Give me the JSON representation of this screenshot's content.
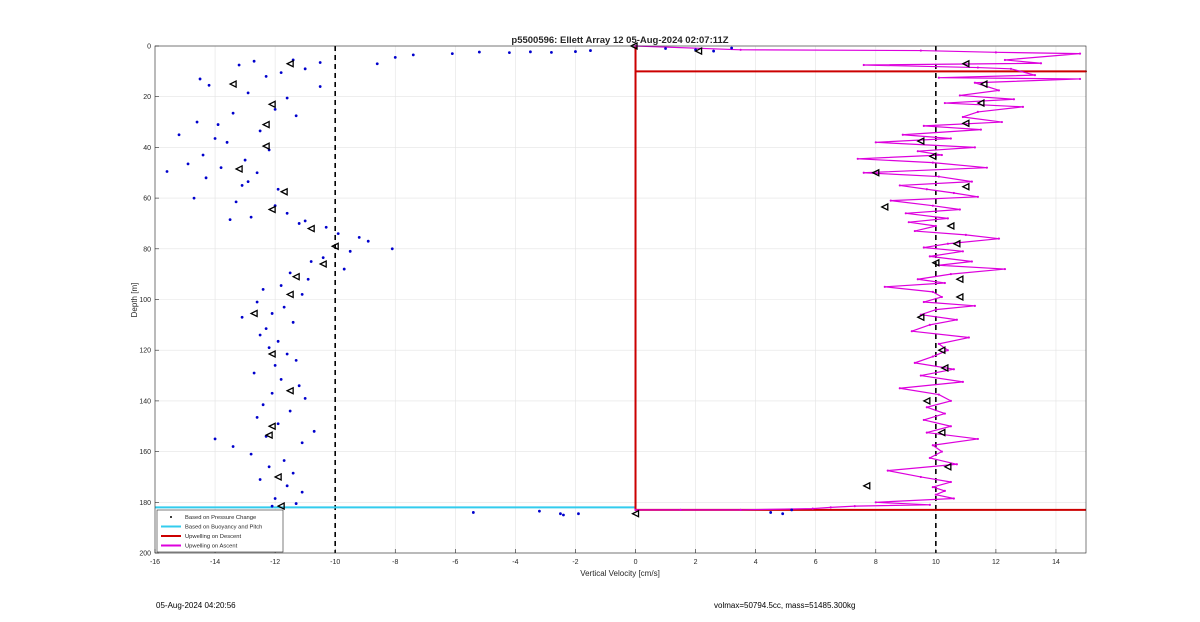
{
  "chart_data": {
    "type": "scatter",
    "title": "p5500596: Ellett Array 12 05-Aug-2024 02:07:11Z",
    "xlabel": "Vertical Velocity [cm/s]",
    "ylabel": "Depth [m]",
    "xlim": [
      -16,
      15
    ],
    "ylim": [
      0,
      200
    ],
    "y_reversed": true,
    "grid": true,
    "xticks": [
      -16,
      -14,
      -12,
      -10,
      -8,
      -6,
      -4,
      -2,
      0,
      2,
      4,
      6,
      8,
      10,
      12,
      14
    ],
    "yticks": [
      0,
      20,
      40,
      60,
      80,
      100,
      120,
      140,
      160,
      180,
      200
    ],
    "legend_position": "bottom-left",
    "legend": [
      {
        "label": "Based on Pressure Change",
        "color": "#000000",
        "style": "dot"
      },
      {
        "label": "Based on Buoyancy and Pitch",
        "color": "#33ccee",
        "style": "line"
      },
      {
        "label": "Upwelling on Descent",
        "color": "#cc0000",
        "style": "line"
      },
      {
        "label": "Upwelling on Ascent",
        "color": "#dd00dd",
        "style": "line"
      }
    ],
    "reference_lines_x": [
      -10,
      10
    ],
    "series": [
      {
        "name": "Based on Pressure Change",
        "marker": "dot",
        "color": "#0000cc",
        "x": [
          2.0,
          3.2,
          2.6,
          1.0,
          -1.5,
          -2.0,
          -2.8,
          -3.5,
          -4.2,
          -5.2,
          -6.1,
          -7.4,
          -8.0,
          -8.6,
          -10.5,
          -11.4,
          -12.7,
          -13.2,
          -14.5,
          -14.2,
          -12.3,
          -11.8,
          -12.9,
          -11.0,
          -10.5,
          -11.6,
          -12.0,
          -13.4,
          -11.3,
          -14.6,
          -13.9,
          -12.5,
          -15.2,
          -14.0,
          -13.6,
          -12.2,
          -14.4,
          -13.0,
          -14.9,
          -13.8,
          -12.6,
          -15.6,
          -14.3,
          -12.9,
          -13.1,
          -11.9,
          -14.7,
          -13.3,
          -12.0,
          -11.6,
          -12.8,
          -13.5,
          -11.2,
          -10.3,
          -11.0,
          -9.9,
          -9.2,
          -8.9,
          -8.1,
          -9.5,
          -10.4,
          -10.8,
          -9.7,
          -11.5,
          -10.9,
          -11.8,
          -12.4,
          -11.1,
          -12.6,
          -11.7,
          -12.1,
          -13.1,
          -11.4,
          -12.3,
          -12.5,
          -11.9,
          -12.2,
          -11.6,
          -11.3,
          -12.0,
          -12.7,
          -11.8,
          -11.2,
          -12.1,
          -11.0,
          -12.4,
          -11.5,
          -12.6,
          -11.9,
          -10.7,
          -12.3,
          -11.1,
          -14.0,
          -13.4,
          -12.8,
          -11.7,
          -12.2,
          -11.4,
          -12.5,
          -11.6,
          -11.1,
          -12.0,
          -11.3,
          -12.1,
          -5.4,
          -3.2,
          -2.5,
          -2.4,
          -1.9,
          4.5,
          4.9,
          5.2
        ],
        "y": [
          1.5,
          0.8,
          2.0,
          1.0,
          1.8,
          2.2,
          2.5,
          2.3,
          2.6,
          2.4,
          3.0,
          3.5,
          4.5,
          7.0,
          6.5,
          5.5,
          6.0,
          7.5,
          13.0,
          15.5,
          12.0,
          10.5,
          18.5,
          9.0,
          16.0,
          20.5,
          25.0,
          26.5,
          27.5,
          30.0,
          31.0,
          33.5,
          35.0,
          36.5,
          38.0,
          41.0,
          43.0,
          45.0,
          46.5,
          48.0,
          50.0,
          49.5,
          52.0,
          53.5,
          55.0,
          56.5,
          60.0,
          61.5,
          63.0,
          66.0,
          67.5,
          68.5,
          70.0,
          71.5,
          69.0,
          74.0,
          75.5,
          77.0,
          80.0,
          81.0,
          83.5,
          85.0,
          88.0,
          89.5,
          92.0,
          94.5,
          96.0,
          98.0,
          101.0,
          103.0,
          105.5,
          107.0,
          109.0,
          111.5,
          114.0,
          116.5,
          119.0,
          121.5,
          124.0,
          126.0,
          129.0,
          131.5,
          134.0,
          137.0,
          139.0,
          141.5,
          144.0,
          146.5,
          149.0,
          152.0,
          154.0,
          156.5,
          155.0,
          158.0,
          161.0,
          163.5,
          166.0,
          168.5,
          171.0,
          173.5,
          176.0,
          178.5,
          180.5,
          181.5,
          184.0,
          183.5,
          184.5,
          185.0,
          184.5,
          184.0,
          184.5,
          183.0
        ]
      },
      {
        "name": "Based on Pressure Change",
        "marker": "triangle",
        "color": "#000000",
        "x": [
          -11.5,
          -13.4,
          -12.1,
          -12.3,
          -12.3,
          -13.2,
          -11.7,
          -12.1,
          -10.8,
          -10.0,
          -10.4,
          -11.3,
          -11.5,
          -12.7,
          -12.1,
          -11.5,
          -12.1,
          -12.2,
          -11.9,
          -11.8,
          -0.05,
          2.1
        ],
        "y": [
          7.0,
          15.0,
          23.0,
          31.0,
          39.5,
          48.5,
          57.5,
          64.5,
          72.0,
          79.0,
          86.0,
          91.0,
          98.0,
          105.5,
          121.5,
          136.0,
          150.0,
          153.5,
          170.0,
          181.5,
          0.0,
          2.0
        ]
      },
      {
        "name": "Based on Buoyancy and Pitch",
        "marker": "line",
        "color": "#33ccee",
        "x": [
          0.0,
          0.0,
          0.0,
          -16.0
        ],
        "y": [
          0.0,
          10.0,
          182.0,
          182.0
        ]
      },
      {
        "name": "Upwelling on Descent",
        "marker": "line",
        "color": "#cc0000",
        "x": [
          0.0,
          0.0,
          15.0,
          0.0,
          0.0,
          15.0
        ],
        "y": [
          0.0,
          10.0,
          10.0,
          10.0,
          183.0,
          183.0
        ]
      },
      {
        "name": "Upwelling on Ascent",
        "marker": "line",
        "color": "#dd00dd",
        "x": [
          0.0,
          3.5,
          9.5,
          12.0,
          14.8,
          12.3,
          13.5,
          7.6,
          11.4,
          12.5,
          13.3,
          10.1,
          14.8,
          11.3,
          12.1,
          10.8,
          12.6,
          10.3,
          12.9,
          11.4,
          10.9,
          12.2,
          9.6,
          11.5,
          8.9,
          10.5,
          8.0,
          11.3,
          9.4,
          10.2,
          7.4,
          9.9,
          11.7,
          7.6,
          10.1,
          11.2,
          8.8,
          9.7,
          10.6,
          11.4,
          8.5,
          9.9,
          10.8,
          9.0,
          10.4,
          9.1,
          10.0,
          9.3,
          11.0,
          12.1,
          10.4,
          9.6,
          10.9,
          9.8,
          11.2,
          10.1,
          12.3,
          10.5,
          9.4,
          10.3,
          8.3,
          9.9,
          10.2,
          9.6,
          11.3,
          10.0,
          9.5,
          10.7,
          9.8,
          9.2,
          11.1,
          10.1,
          10.4,
          9.9,
          9.3,
          10.6,
          9.5,
          10.9,
          8.8,
          10.1,
          10.5,
          9.7,
          10.3,
          9.6,
          10.5,
          9.7,
          11.4,
          9.9,
          10.2,
          9.8,
          10.7,
          8.4,
          9.5,
          10.5,
          9.9,
          10.3,
          10.0,
          10.6,
          8.0,
          9.8,
          7.3,
          6.5,
          5.9,
          3.5,
          1.5,
          0.0
        ],
        "y": [
          0.0,
          1.5,
          1.8,
          2.5,
          3.0,
          5.5,
          6.8,
          7.5,
          8.5,
          9.0,
          11.5,
          12.5,
          13.0,
          14.5,
          17.5,
          19.5,
          21.0,
          22.5,
          24.0,
          26.0,
          28.0,
          30.0,
          31.5,
          33.0,
          35.0,
          36.5,
          38.0,
          40.0,
          41.5,
          43.0,
          44.5,
          46.0,
          48.0,
          50.0,
          51.5,
          53.5,
          55.0,
          56.5,
          58.0,
          59.5,
          61.0,
          63.0,
          64.5,
          66.0,
          68.0,
          69.5,
          71.0,
          73.0,
          74.5,
          76.0,
          78.0,
          79.5,
          81.0,
          83.0,
          85.0,
          86.5,
          88.0,
          90.0,
          92.0,
          93.5,
          95.0,
          97.0,
          99.0,
          101.0,
          102.5,
          104.0,
          106.0,
          108.0,
          110.0,
          112.5,
          115.0,
          117.5,
          120.0,
          122.5,
          125.0,
          127.5,
          130.0,
          132.5,
          135.0,
          137.5,
          140.0,
          142.5,
          145.0,
          147.5,
          150.0,
          152.5,
          155.0,
          157.5,
          160.0,
          162.5,
          165.0,
          167.5,
          170.0,
          172.0,
          174.0,
          175.5,
          177.0,
          178.5,
          180.0,
          181.0,
          181.5,
          182.0,
          182.5,
          183.0,
          183.0,
          183.0
        ]
      },
      {
        "name": "Upwelling on Ascent",
        "marker": "triangle",
        "color": "#000000",
        "x": [
          11.0,
          11.6,
          11.5,
          11.0,
          9.5,
          9.9,
          8.0,
          11.0,
          8.3,
          10.5,
          10.7,
          10.0,
          10.8,
          10.8,
          9.5,
          10.2,
          10.3,
          9.7,
          10.2,
          10.4,
          7.7,
          0.0
        ],
        "y": [
          7.0,
          15.0,
          22.5,
          30.5,
          37.5,
          43.5,
          50.0,
          55.5,
          63.5,
          71.0,
          78.0,
          85.5,
          92.0,
          99.0,
          107.0,
          120.0,
          127.0,
          140.0,
          152.5,
          166.0,
          173.5,
          184.5
        ]
      }
    ]
  },
  "footer": {
    "left_text": "05-Aug-2024 04:20:56",
    "right_text": "volmax=50794.5cc, mass=51485.300kg"
  }
}
